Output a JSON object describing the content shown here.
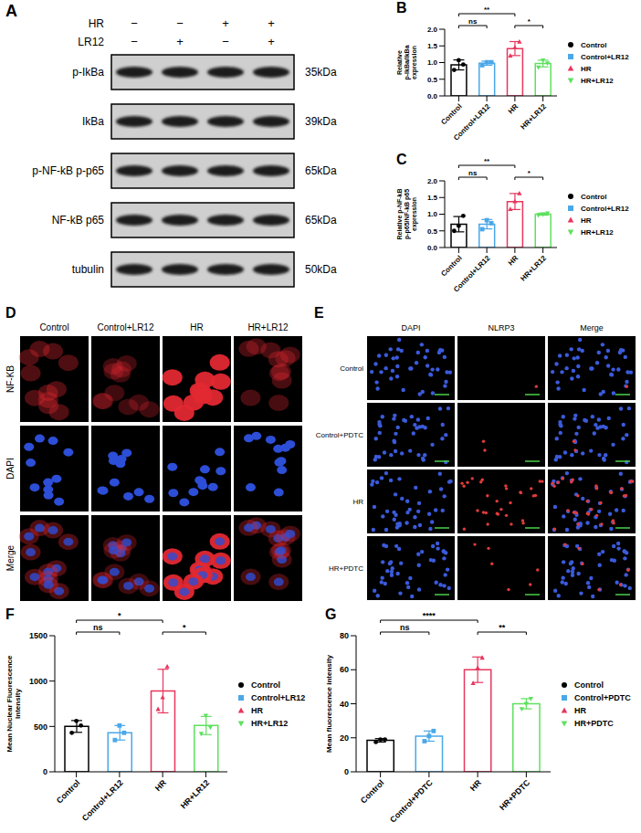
{
  "chart_data": [
    {
      "panel": "B",
      "type": "bar",
      "categories": [
        "Control",
        "Control+LR12",
        "HR",
        "HR+LR12"
      ],
      "values": [
        0.93,
        0.98,
        1.42,
        0.97
      ],
      "errors": [
        0.15,
        0.06,
        0.21,
        0.1
      ],
      "replicates": [
        [
          0.78,
          1.07,
          0.94
        ],
        [
          0.92,
          1.01,
          1.01
        ],
        [
          1.2,
          1.45,
          1.62
        ],
        [
          0.86,
          1.07,
          0.98
        ]
      ],
      "colors": [
        "#000000",
        "#4aa8e8",
        "#e8365d",
        "#5fe05f"
      ],
      "ylabel": "Relative p-IkBa/IkBa expression",
      "ylim": [
        0,
        2
      ],
      "yticks": [
        {
          "value": 0,
          "label": "0.0"
        },
        {
          "value": 0.5,
          "label": "0.5"
        },
        {
          "value": 1,
          "label": "1.0"
        },
        {
          "value": 1.5,
          "label": "1.5"
        },
        {
          "value": 2,
          "label": "2.0"
        }
      ],
      "legend": "right",
      "annotations": [
        {
          "from": "Control",
          "to": "Control+LR12",
          "label": "ns"
        },
        {
          "from": "Control",
          "to": "HR",
          "label": "**"
        },
        {
          "from": "HR",
          "to": "HR+LR12",
          "label": "*"
        }
      ]
    },
    {
      "panel": "C",
      "type": "bar",
      "categories": [
        "Control",
        "Control+LR12",
        "HR",
        "HR+LR12"
      ],
      "values": [
        0.7,
        0.7,
        1.38,
        1.0
      ],
      "errors": [
        0.23,
        0.14,
        0.24,
        0.03
      ],
      "replicates": [
        [
          0.5,
          0.65,
          0.95
        ],
        [
          0.55,
          0.82,
          0.73
        ],
        [
          1.15,
          1.38,
          1.62
        ],
        [
          0.97,
          1.0,
          1.03
        ]
      ],
      "colors": [
        "#000000",
        "#4aa8e8",
        "#e8365d",
        "#5fe05f"
      ],
      "ylabel": "Relative p-NF-kB p-p65/NF-kB p65 expression",
      "ylim": [
        0,
        2
      ],
      "yticks": [
        {
          "value": 0,
          "label": "0.0"
        },
        {
          "value": 0.5,
          "label": "0.5"
        },
        {
          "value": 1,
          "label": "1.0"
        },
        {
          "value": 1.5,
          "label": "1.5"
        },
        {
          "value": 2,
          "label": "2.0"
        }
      ],
      "legend": "right",
      "annotations": [
        {
          "from": "Control",
          "to": "Control+LR12",
          "label": "ns"
        },
        {
          "from": "Control",
          "to": "HR",
          "label": "**"
        },
        {
          "from": "HR",
          "to": "HR+LR12",
          "label": "*"
        }
      ]
    },
    {
      "panel": "F",
      "type": "bar",
      "categories": [
        "Control",
        "Control+LR12",
        "HR",
        "HR+LR12"
      ],
      "values": [
        500,
        430,
        890,
        510
      ],
      "errors": [
        65,
        80,
        240,
        100
      ],
      "replicates": [
        [
          430,
          560,
          510
        ],
        [
          350,
          510,
          430
        ],
        [
          690,
          820,
          1160
        ],
        [
          420,
          620,
          490
        ]
      ],
      "colors": [
        "#000000",
        "#4aa8e8",
        "#e8365d",
        "#5fe05f"
      ],
      "ylabel": "Mean Nuclear Fluorescence Intensity",
      "ylim": [
        0,
        1500
      ],
      "yticks": [
        0,
        500,
        1000,
        1500
      ],
      "legend": "right",
      "annotations": [
        {
          "from": "Control",
          "to": "Control+LR12",
          "label": "ns"
        },
        {
          "from": "Control",
          "to": "HR",
          "label": "*"
        },
        {
          "from": "HR",
          "to": "HR+LR12",
          "label": "*"
        }
      ]
    },
    {
      "panel": "G",
      "type": "bar",
      "categories": [
        "Control",
        "Control+PDTC",
        "HR",
        "HR+PDTC"
      ],
      "values": [
        18.5,
        21,
        60,
        40
      ],
      "errors": [
        1,
        3,
        7.5,
        3
      ],
      "replicates": [
        [
          17.5,
          19,
          19
        ],
        [
          18,
          21,
          24
        ],
        [
          52,
          61,
          67
        ],
        [
          37,
          40,
          43
        ]
      ],
      "colors": [
        "#000000",
        "#4aa8e8",
        "#e8365d",
        "#5fe05f"
      ],
      "ylabel": "Mean fluorescence intensity",
      "ylim": [
        0,
        80
      ],
      "yticks": [
        0,
        20,
        40,
        60,
        80
      ],
      "legend": "right",
      "annotations": [
        {
          "from": "Control",
          "to": "Control+PDTC",
          "label": "ns"
        },
        {
          "from": "Control",
          "to": "HR",
          "label": "****"
        },
        {
          "from": "HR",
          "to": "HR+PDTC",
          "label": "**"
        }
      ]
    }
  ],
  "blot": {
    "panel": "A",
    "conditions": [
      {
        "label": "HR",
        "signs": [
          "−",
          "−",
          "+",
          "+"
        ]
      },
      {
        "label": "LR12",
        "signs": [
          "−",
          "+",
          "−",
          "+"
        ]
      }
    ],
    "rows": [
      {
        "label": "p-IkBa",
        "size": "35kDa"
      },
      {
        "label": "IkBa",
        "size": "39kDa"
      },
      {
        "label": "p-NF-kB p-p65",
        "size": "65kDa"
      },
      {
        "label": "NF-kB p65",
        "size": "65kDa"
      },
      {
        "label": "tubulin",
        "size": "50kDa"
      }
    ]
  },
  "micrographs": [
    {
      "panel": "D",
      "columns": [
        "Control",
        "Control+LR12",
        "HR",
        "HR+LR12"
      ],
      "rows": [
        "NF-KB",
        "DAPI",
        "Merge"
      ]
    },
    {
      "panel": "E",
      "columns": [
        "DAPI",
        "NLRP3",
        "Merge"
      ],
      "rows": [
        "Control",
        "Control+PDTC",
        "HR",
        "HR+PDTC"
      ]
    }
  ]
}
